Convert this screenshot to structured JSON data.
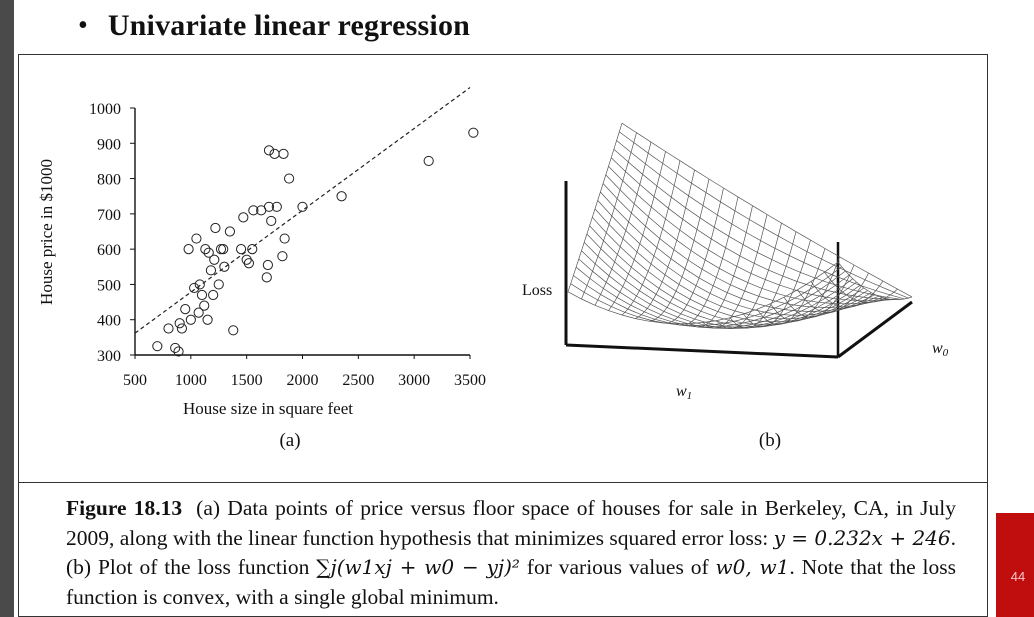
{
  "slide": {
    "title": "Univariate linear regression",
    "bullet": "•",
    "page_number": "44"
  },
  "panel_a": {
    "label": "(a)",
    "xlabel": "House size in square feet",
    "ylabel": "House price in $1000"
  },
  "panel_b": {
    "label": "(b)",
    "axis_loss": "Loss",
    "axis_w0": "w0",
    "axis_w1": "w1"
  },
  "caption": {
    "figure_label": "Figure 18.13",
    "text_1": "(a) Data points of price versus floor space of houses for sale in Berkeley, CA, in July 2009, along with the linear function hypothesis that minimizes squared error loss: ",
    "eq_1": "y = 0.232x + 246",
    "text_2": ". (b) Plot of the loss function ",
    "eq_2": "∑j(w1xj + w0 − yj)²",
    "text_3": " for various values of ",
    "eq_3": "w0, w1",
    "text_4": ". Note that the loss function is convex, with a single global minimum."
  },
  "colors": {
    "page_tab": "#c00d0d",
    "left_bar": "#4a4a4a",
    "ink": "#111111"
  },
  "chart_data": [
    {
      "type": "scatter",
      "title": "",
      "xlabel": "House size in square feet",
      "ylabel": "House price in $1000",
      "xlim": [
        500,
        3500
      ],
      "ylim": [
        300,
        1000
      ],
      "xticks": [
        500,
        1000,
        1500,
        2000,
        2500,
        3000,
        3500
      ],
      "yticks": [
        300,
        400,
        500,
        600,
        700,
        800,
        900,
        1000
      ],
      "grid": false,
      "legend": "none",
      "series": [
        {
          "marker": "open-circle",
          "points": [
            [
              700,
              325
            ],
            [
              800,
              375
            ],
            [
              860,
              320
            ],
            [
              890,
              310
            ],
            [
              900,
              390
            ],
            [
              920,
              375
            ],
            [
              950,
              430
            ],
            [
              980,
              600
            ],
            [
              1000,
              400
            ],
            [
              1030,
              490
            ],
            [
              1050,
              630
            ],
            [
              1070,
              420
            ],
            [
              1080,
              500
            ],
            [
              1100,
              470
            ],
            [
              1120,
              440
            ],
            [
              1130,
              600
            ],
            [
              1150,
              400
            ],
            [
              1160,
              590
            ],
            [
              1180,
              540
            ],
            [
              1200,
              470
            ],
            [
              1210,
              570
            ],
            [
              1220,
              660
            ],
            [
              1250,
              500
            ],
            [
              1270,
              600
            ],
            [
              1290,
              600
            ],
            [
              1300,
              550
            ],
            [
              1350,
              650
            ],
            [
              1380,
              370
            ],
            [
              1450,
              600
            ],
            [
              1470,
              690
            ],
            [
              1500,
              570
            ],
            [
              1520,
              560
            ],
            [
              1550,
              600
            ],
            [
              1560,
              710
            ],
            [
              1630,
              710
            ],
            [
              1680,
              520
            ],
            [
              1690,
              555
            ],
            [
              1700,
              880
            ],
            [
              1700,
              720
            ],
            [
              1720,
              680
            ],
            [
              1750,
              870
            ],
            [
              1770,
              720
            ],
            [
              1820,
              580
            ],
            [
              1830,
              870
            ],
            [
              1840,
              630
            ],
            [
              1880,
              800
            ],
            [
              2000,
              720
            ],
            [
              2350,
              750
            ],
            [
              3130,
              850
            ],
            [
              3530,
              930
            ]
          ]
        }
      ],
      "fit_line": {
        "style": "dashed",
        "slope": 0.232,
        "intercept": 246,
        "x_range": [
          500,
          3500
        ]
      }
    },
    {
      "type": "surface",
      "title": "",
      "axes": [
        "Loss",
        "w0",
        "w1"
      ],
      "grid": false,
      "description_values": "convex loss surface over w0, w1"
    }
  ]
}
